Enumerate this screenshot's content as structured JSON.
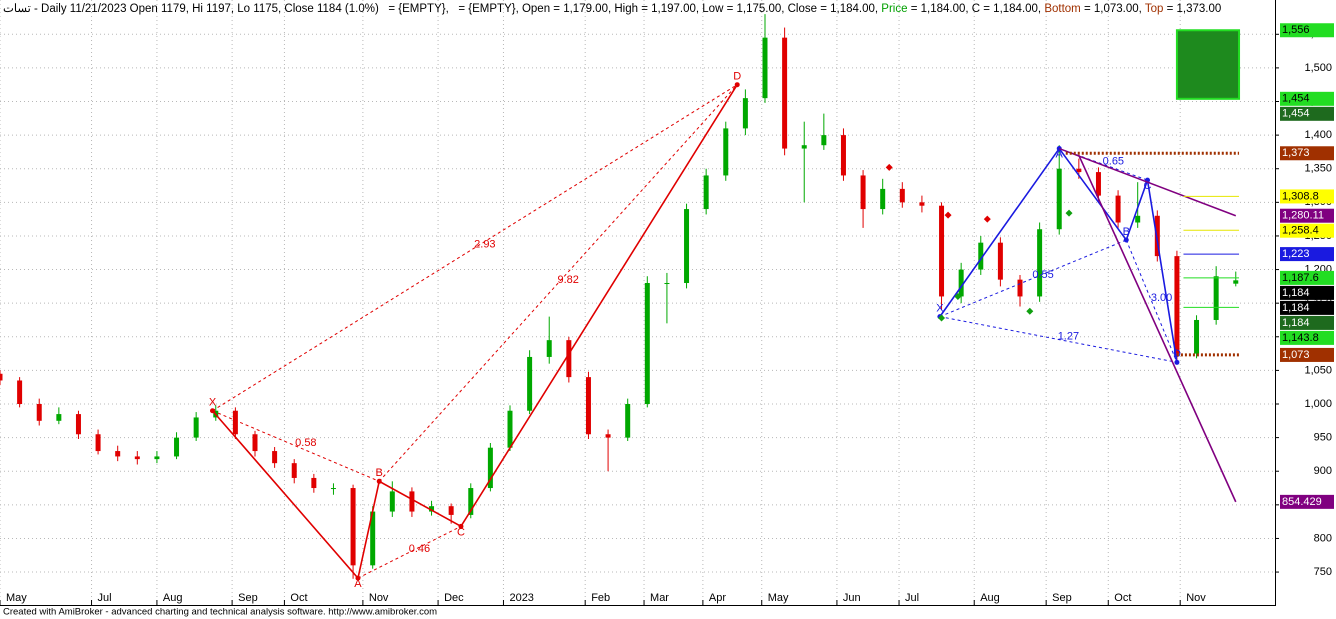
{
  "chart_data": {
    "type": "candlestick",
    "header": [
      {
        "text": "تسات - Daily 11/21/2023 Open 1179, Hi 1197, Lo 1175, Close 1184 (1.0%)",
        "color": "#000000"
      },
      {
        "text": "   = {EMPTY},   = {EMPTY}, Open = 1,179.00, High = 1,197.00, Low = 1,175.00, Close = 1,184.00, ",
        "color": "#000000"
      },
      {
        "text": "Price",
        "color": "#00a000"
      },
      {
        "text": " = 1,184.00, C = 1,184.00, ",
        "color": "#000000"
      },
      {
        "text": "Bottom",
        "color": "#a03000"
      },
      {
        "text": " = 1,073.00, ",
        "color": "#000000"
      },
      {
        "text": "Top",
        "color": "#a03000"
      },
      {
        "text": " = 1,373.00",
        "color": "#000000"
      }
    ],
    "footer": "Created with AmiBroker - advanced charting and technical analysis software. http://www.amibroker.com",
    "up_color": "#00a800",
    "down_color": "#e00000",
    "grid": true,
    "xlim": [
      0,
      390
    ],
    "xticks": [
      {
        "value": 0,
        "label": "May"
      },
      {
        "value": 28,
        "label": "Jul"
      },
      {
        "value": 48,
        "label": "Aug"
      },
      {
        "value": 71,
        "label": "Sep"
      },
      {
        "value": 87,
        "label": "Oct"
      },
      {
        "value": 111,
        "label": "Nov"
      },
      {
        "value": 134,
        "label": "Dec"
      },
      {
        "value": 154,
        "label": "2023"
      },
      {
        "value": 179,
        "label": "Feb"
      },
      {
        "value": 197,
        "label": "Mar"
      },
      {
        "value": 215,
        "label": "Apr"
      },
      {
        "value": 233,
        "label": "May"
      },
      {
        "value": 256,
        "label": "Jun"
      },
      {
        "value": 275,
        "label": "Jul"
      },
      {
        "value": 298,
        "label": "Aug"
      },
      {
        "value": 320,
        "label": "Sep"
      },
      {
        "value": 339,
        "label": "Oct"
      },
      {
        "value": 361,
        "label": "Nov"
      }
    ],
    "ylim": [
      701,
      1601
    ],
    "yticks": [
      750,
      800,
      850,
      900,
      950,
      {
        "value": 1000,
        "label": "1,000"
      },
      {
        "value": 1050,
        "label": "1,050"
      },
      {
        "value": 1100,
        "label": "1,100"
      },
      {
        "value": 1150,
        "label": "1,150"
      },
      {
        "value": 1200,
        "label": "1,200"
      },
      {
        "value": 1250,
        "label": "1,250"
      },
      {
        "value": 1300,
        "label": "1,300"
      },
      {
        "value": 1350,
        "label": "1,350"
      },
      {
        "value": 1400,
        "label": "1,400"
      },
      {
        "value": 1450,
        "label": "1,450"
      },
      {
        "value": 1500,
        "label": "1,500"
      },
      {
        "value": 1550,
        "label": "1,550"
      }
    ],
    "x": [
      0,
      6,
      12,
      18,
      24,
      30,
      36,
      42,
      48,
      54,
      60,
      66,
      72,
      78,
      84,
      90,
      96,
      102,
      108,
      114,
      120,
      126,
      132,
      138,
      144,
      150,
      156,
      162,
      168,
      174,
      180,
      186,
      192,
      198,
      204,
      210,
      216,
      222,
      228,
      234,
      240,
      246,
      252,
      258,
      264,
      270,
      276,
      282,
      288,
      294,
      300,
      306,
      312,
      318,
      324,
      330,
      336,
      342,
      348,
      354,
      360,
      366,
      372,
      378
    ],
    "open": [
      1045,
      1035,
      1000,
      975,
      985,
      955,
      930,
      922,
      918,
      922,
      950,
      980,
      990,
      955,
      930,
      912,
      890,
      875,
      875,
      760,
      840,
      870,
      840,
      848,
      835,
      875,
      935,
      990,
      1070,
      1095,
      1040,
      955,
      950,
      1000,
      1180,
      1180,
      1290,
      1340,
      1410,
      1455,
      1545,
      1380,
      1385,
      1400,
      1340,
      1290,
      1320,
      1300,
      1295,
      1160,
      1200,
      1240,
      1185,
      1160,
      1260,
      1350,
      1345,
      1310,
      1270,
      1280,
      1220,
      1075,
      1125,
      1179
    ],
    "high": [
      1050,
      1040,
      1008,
      995,
      990,
      962,
      938,
      930,
      930,
      958,
      988,
      998,
      995,
      960,
      936,
      918,
      896,
      882,
      880,
      848,
      885,
      876,
      856,
      852,
      882,
      942,
      998,
      1080,
      1130,
      1100,
      1048,
      962,
      1008,
      1190,
      1195,
      1298,
      1350,
      1420,
      1468,
      1580,
      1560,
      1420,
      1432,
      1410,
      1348,
      1335,
      1330,
      1310,
      1300,
      1210,
      1250,
      1248,
      1192,
      1270,
      1385,
      1365,
      1352,
      1318,
      1330,
      1288,
      1228,
      1132,
      1205,
      1197
    ],
    "low": [
      1028,
      995,
      968,
      970,
      948,
      925,
      915,
      910,
      912,
      918,
      945,
      975,
      948,
      922,
      905,
      882,
      868,
      865,
      740,
      755,
      832,
      832,
      834,
      822,
      830,
      870,
      930,
      985,
      1060,
      1032,
      948,
      900,
      945,
      995,
      1120,
      1172,
      1282,
      1332,
      1400,
      1448,
      1370,
      1300,
      1378,
      1332,
      1262,
      1282,
      1292,
      1285,
      1140,
      1150,
      1192,
      1175,
      1145,
      1152,
      1252,
      1335,
      1300,
      1262,
      1262,
      1212,
      1065,
      1068,
      1118,
      1175
    ],
    "close": [
      1035,
      1000,
      975,
      985,
      955,
      930,
      922,
      918,
      922,
      950,
      980,
      990,
      955,
      930,
      912,
      890,
      875,
      875,
      760,
      840,
      870,
      840,
      848,
      835,
      875,
      935,
      990,
      1070,
      1095,
      1040,
      955,
      950,
      1000,
      1180,
      1180,
      1290,
      1340,
      1410,
      1455,
      1545,
      1380,
      1385,
      1400,
      1340,
      1290,
      1320,
      1300,
      1295,
      1160,
      1200,
      1240,
      1185,
      1160,
      1260,
      1350,
      1345,
      1310,
      1270,
      1280,
      1220,
      1075,
      1125,
      1190,
      1184
    ],
    "patterns": [
      {
        "color": "#e00000",
        "points": [
          {
            "label": "X",
            "x": 65,
            "y": 990
          },
          {
            "label": "A",
            "x": 109.5,
            "y": 741
          },
          {
            "label": "B",
            "x": 116,
            "y": 885
          },
          {
            "label": "C",
            "x": 141,
            "y": 818
          },
          {
            "label": "D",
            "x": 225.5,
            "y": 1475
          }
        ],
        "ratios": [
          {
            "text": "0.58",
            "from": 0,
            "to": 2
          },
          {
            "text": "0.46",
            "from": 1,
            "to": 3
          },
          {
            "text": "2.93",
            "from": 0,
            "to": 4
          },
          {
            "text": "9.82",
            "from": 2,
            "to": 4
          }
        ]
      },
      {
        "color": "#1a1ae0",
        "points": [
          {
            "label": "X",
            "x": 287.5,
            "y": 1130
          },
          {
            "label": "A",
            "x": 324,
            "y": 1380
          },
          {
            "label": "B",
            "x": 344.5,
            "y": 1244
          },
          {
            "label": "C",
            "x": 351,
            "y": 1333
          },
          {
            "label": "D",
            "x": 360,
            "y": 1062
          }
        ],
        "ratios": [
          {
            "text": "0.65",
            "from": 1,
            "to": 3
          },
          {
            "text": "0.55",
            "from": 0,
            "to": 2
          },
          {
            "text": "1.27",
            "from": 0,
            "to": 4
          },
          {
            "text": "3.00",
            "from": 2,
            "to": 4
          }
        ]
      }
    ],
    "projections": [
      {
        "color": "#800080",
        "x": [
          324,
          378
        ],
        "y": [
          1380,
          1280.11
        ]
      },
      {
        "color": "#800080",
        "x": [
          330,
          378
        ],
        "y": [
          1370,
          854.429
        ]
      }
    ],
    "signals": [
      {
        "color": "#e00000",
        "x": [
          272,
          290,
          302
        ],
        "y": [
          1352,
          1281,
          1275
        ]
      },
      {
        "color": "#10a010",
        "x": [
          288,
          293,
          315,
          327
        ],
        "y": [
          1128,
          1160,
          1138,
          1284
        ]
      }
    ],
    "target_zone": {
      "low": 1454,
      "high": 1556,
      "from": 360,
      "to": 379,
      "color": "#1e8a1e"
    },
    "levels": [
      {
        "value": 1556,
        "label": "1,556",
        "color": "#22dd22",
        "text_color": "#000000"
      },
      {
        "value": 1454,
        "label": "1,454",
        "color": "#22dd22",
        "text_color": "#000000"
      },
      {
        "value": 1454,
        "label": "1,454",
        "color": "#1e6a1e",
        "text_color": "#ffffff"
      },
      {
        "value": 1373,
        "label": "1,373",
        "color": "#a03000",
        "text_color": "#ffffff",
        "from": 326,
        "to": 379
      },
      {
        "value": 1308.8,
        "label": "1,308.8",
        "color": "#ffff00",
        "text_color": "#000000",
        "from": 362,
        "to": 379
      },
      {
        "value": 1280.11,
        "label": "1,280.11",
        "color": "#800080",
        "text_color": "#ffffff"
      },
      {
        "value": 1258.4,
        "label": "1,258.4",
        "color": "#ffff00",
        "text_color": "#000000",
        "from": 362,
        "to": 379
      },
      {
        "value": 1223,
        "label": "1,223",
        "color": "#1a1ae0",
        "text_color": "#ffffff",
        "from": 362,
        "to": 379
      },
      {
        "value": 1187.6,
        "label": "1,187.6",
        "color": "#22dd22",
        "text_color": "#000000",
        "from": 362,
        "to": 379
      },
      {
        "value": 1184,
        "label": "1,184",
        "color": "#000000",
        "text_color": "#ffffff"
      },
      {
        "value": 1184,
        "label": "1,184",
        "color": "#000000",
        "text_color": "#ffffff"
      },
      {
        "value": 1184,
        "label": "1,184",
        "color": "#1e6a1e",
        "text_color": "#ffffff"
      },
      {
        "value": 1143.8,
        "label": "1,143.8",
        "color": "#22dd22",
        "text_color": "#000000",
        "from": 362,
        "to": 379
      },
      {
        "value": 1073,
        "label": "1,073",
        "color": "#a03000",
        "text_color": "#ffffff",
        "from": 360,
        "to": 379
      },
      {
        "value": 854.429,
        "color": "#800080",
        "text_color": "#ffffff"
      }
    ]
  }
}
